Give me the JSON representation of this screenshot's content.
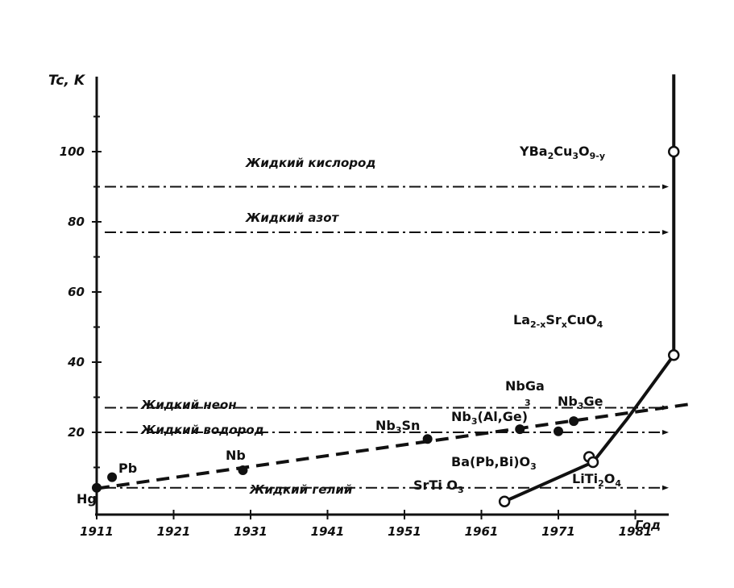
{
  "chart_data": {
    "type": "line",
    "ylabel": "Tc, K",
    "xlabel_end": "Год",
    "x_ticks": [
      "1911",
      "1921",
      "1931",
      "1941",
      "1951",
      "1961",
      "1971",
      "1981"
    ],
    "y_ticks": [
      "20",
      "40",
      "60",
      "80",
      "100"
    ],
    "xlim": [
      1911,
      1988
    ],
    "ylim": [
      0,
      120
    ],
    "reference_lines": [
      {
        "label": "Жидкий кислород",
        "value": 90
      },
      {
        "label": "Жидкий азот",
        "value": 77
      },
      {
        "label": "Жидкий неон",
        "value": 27
      },
      {
        "label": "Жидкий водород",
        "value": 20
      },
      {
        "label": "Жидкий гелий",
        "value": 4.2
      }
    ],
    "series": [
      {
        "style": "dashed",
        "marker": "filled",
        "trend": [
          [
            1911,
            4
          ],
          [
            1988,
            28
          ]
        ],
        "points": [
          {
            "label": "Hg",
            "x": 1911,
            "y": 4.2
          },
          {
            "label": "Pb",
            "x": 1913,
            "y": 7.2
          },
          {
            "label": "Nb",
            "x": 1930,
            "y": 9.2
          },
          {
            "label": "Nb3Sn",
            "x": 1954,
            "y": 18.1
          },
          {
            "label": "Nb3(Al,Ge)",
            "x": 1966,
            "y": 20.9
          },
          {
            "label": "NbGa3",
            "x": 1971,
            "y": 20.3
          },
          {
            "label": "Nb3Ge",
            "x": 1973,
            "y": 23.2
          }
        ]
      },
      {
        "style": "solid",
        "marker": "open",
        "points": [
          {
            "label": "SrTiO3",
            "x": 1964,
            "y": 0.3
          },
          {
            "label": "Ba(Pb,Bi)O3",
            "x": 1975,
            "y": 13
          },
          {
            "label": "LiTi2O4",
            "x": 1975.5,
            "y": 11.5
          },
          {
            "label": "La2-xSrxCuO4",
            "x": 1986,
            "y": 42
          },
          {
            "label": "YBa2Cu3O9-y",
            "x": 1986,
            "y": 100
          }
        ],
        "path": [
          [
            1964,
            0.3
          ],
          [
            1975.5,
            11.5
          ],
          [
            1980,
            24
          ],
          [
            1986,
            42
          ],
          [
            1986,
            100
          ],
          [
            1986,
            122
          ]
        ]
      }
    ]
  }
}
